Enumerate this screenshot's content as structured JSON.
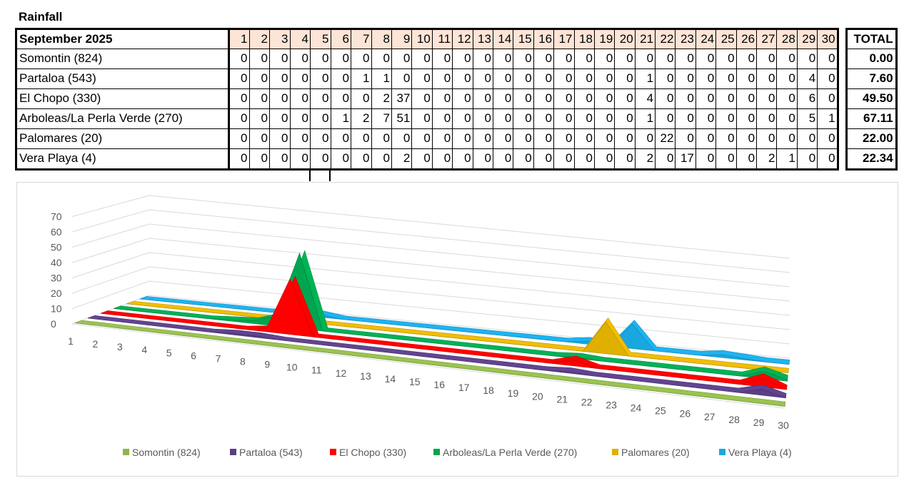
{
  "title": "Rainfall",
  "table": {
    "month_label": "September 2025",
    "total_label": "TOTAL",
    "days": [
      "1",
      "2",
      "3",
      "4",
      "5",
      "6",
      "7",
      "8",
      "9",
      "10",
      "11",
      "12",
      "13",
      "14",
      "15",
      "16",
      "17",
      "18",
      "19",
      "20",
      "21",
      "22",
      "23",
      "24",
      "25",
      "26",
      "27",
      "28",
      "29",
      "30"
    ]
  },
  "chart_data": {
    "type": "area",
    "title": "",
    "xlabel": "",
    "ylabel": "",
    "categories": [
      "1",
      "2",
      "3",
      "4",
      "5",
      "6",
      "7",
      "8",
      "9",
      "10",
      "11",
      "12",
      "13",
      "14",
      "15",
      "16",
      "17",
      "18",
      "19",
      "20",
      "21",
      "22",
      "23",
      "24",
      "25",
      "26",
      "27",
      "28",
      "29",
      "30"
    ],
    "ylim": [
      0,
      70
    ],
    "yticks": [
      "0",
      "10",
      "20",
      "30",
      "40",
      "50",
      "60",
      "70"
    ],
    "grid": true,
    "legend": "bottom",
    "three_d": true,
    "series": [
      {
        "name": "Somontin (824)",
        "color": "#8fb54a",
        "total": "0.00",
        "values": [
          0,
          0,
          0,
          0,
          0,
          0,
          0,
          0,
          0,
          0,
          0,
          0,
          0,
          0,
          0,
          0,
          0,
          0,
          0,
          0,
          0,
          0,
          0,
          0,
          0,
          0,
          0,
          0,
          0,
          0
        ]
      },
      {
        "name": "Partaloa (543)",
        "color": "#5b3f86",
        "total": "7.60",
        "values": [
          0,
          0,
          0,
          0,
          0,
          0,
          1,
          1,
          0,
          0,
          0,
          0,
          0,
          0,
          0,
          0,
          0,
          0,
          0,
          0,
          1,
          0,
          0,
          0,
          0,
          0,
          0,
          0,
          4,
          0
        ]
      },
      {
        "name": "El Chopo (330)",
        "color": "#ff0000",
        "total": "49.50",
        "values": [
          0,
          0,
          0,
          0,
          0,
          0,
          0,
          2,
          37,
          0,
          0,
          0,
          0,
          0,
          0,
          0,
          0,
          0,
          0,
          0,
          4,
          0,
          0,
          0,
          0,
          0,
          0,
          0,
          6,
          0
        ]
      },
      {
        "name": "Arboleas/La Perla Verde (270)",
        "color": "#00a550",
        "total": "67.11",
        "values": [
          0,
          0,
          0,
          0,
          0,
          1,
          2,
          7,
          51,
          0,
          0,
          0,
          0,
          0,
          0,
          0,
          0,
          0,
          0,
          0,
          1,
          0,
          0,
          0,
          0,
          0,
          0,
          0,
          5,
          1
        ]
      },
      {
        "name": "Palomares (20)",
        "color": "#e0b000",
        "total": "22.00",
        "values": [
          0,
          0,
          0,
          0,
          0,
          0,
          0,
          0,
          0,
          0,
          0,
          0,
          0,
          0,
          0,
          0,
          0,
          0,
          0,
          0,
          0,
          22,
          0,
          0,
          0,
          0,
          0,
          0,
          0,
          0
        ]
      },
      {
        "name": "Vera Playa (4)",
        "color": "#1aa7e0",
        "total": "22.34",
        "values": [
          0,
          0,
          0,
          0,
          0,
          0,
          0,
          0,
          2,
          0,
          0,
          0,
          0,
          0,
          0,
          0,
          0,
          0,
          0,
          0,
          2,
          0,
          17,
          0,
          0,
          0,
          2,
          1,
          0,
          0
        ]
      }
    ]
  }
}
